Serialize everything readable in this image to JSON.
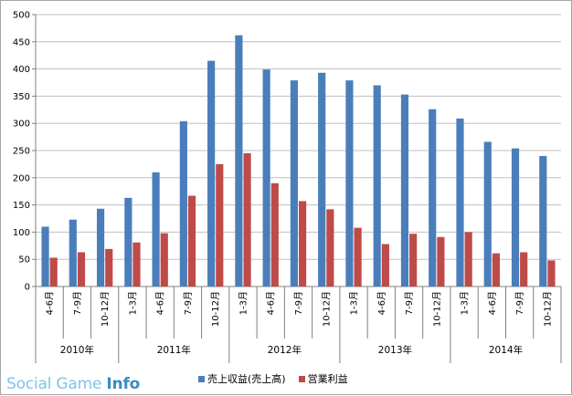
{
  "chart_data": {
    "type": "bar",
    "categories": [
      "4-6月",
      "7-9月",
      "10-12月",
      "1-3月",
      "4-6月",
      "7-9月",
      "10-12月",
      "1-3月",
      "4-6月",
      "7-9月",
      "10-12月",
      "1-3月",
      "4-6月",
      "7-9月",
      "10-12月",
      "1-3月",
      "4-6月",
      "7-9月",
      "10-12月"
    ],
    "groups": [
      {
        "label": "2010年",
        "count": 3
      },
      {
        "label": "2011年",
        "count": 4
      },
      {
        "label": "2012年",
        "count": 4
      },
      {
        "label": "2013年",
        "count": 4
      },
      {
        "label": "2014年",
        "count": 4
      }
    ],
    "series": [
      {
        "name": "売上収益(売上高)",
        "color": "#4a7ebb",
        "values": [
          110,
          123,
          143,
          163,
          210,
          304,
          415,
          462,
          399,
          379,
          393,
          379,
          370,
          353,
          326,
          309,
          266,
          254,
          240
        ]
      },
      {
        "name": "営業利益",
        "color": "#be4b48",
        "values": [
          53,
          63,
          69,
          81,
          98,
          167,
          225,
          245,
          190,
          157,
          142,
          108,
          78,
          97,
          91,
          100,
          61,
          63,
          48
        ]
      }
    ],
    "ylim": [
      0,
      500
    ],
    "yticks": [
      "0",
      "50",
      "100",
      "150",
      "200",
      "250",
      "300",
      "350",
      "400",
      "450",
      "500"
    ],
    "grid": true,
    "legend_position": "bottom"
  },
  "brand": {
    "light": "Social Game ",
    "strong": "Info"
  }
}
